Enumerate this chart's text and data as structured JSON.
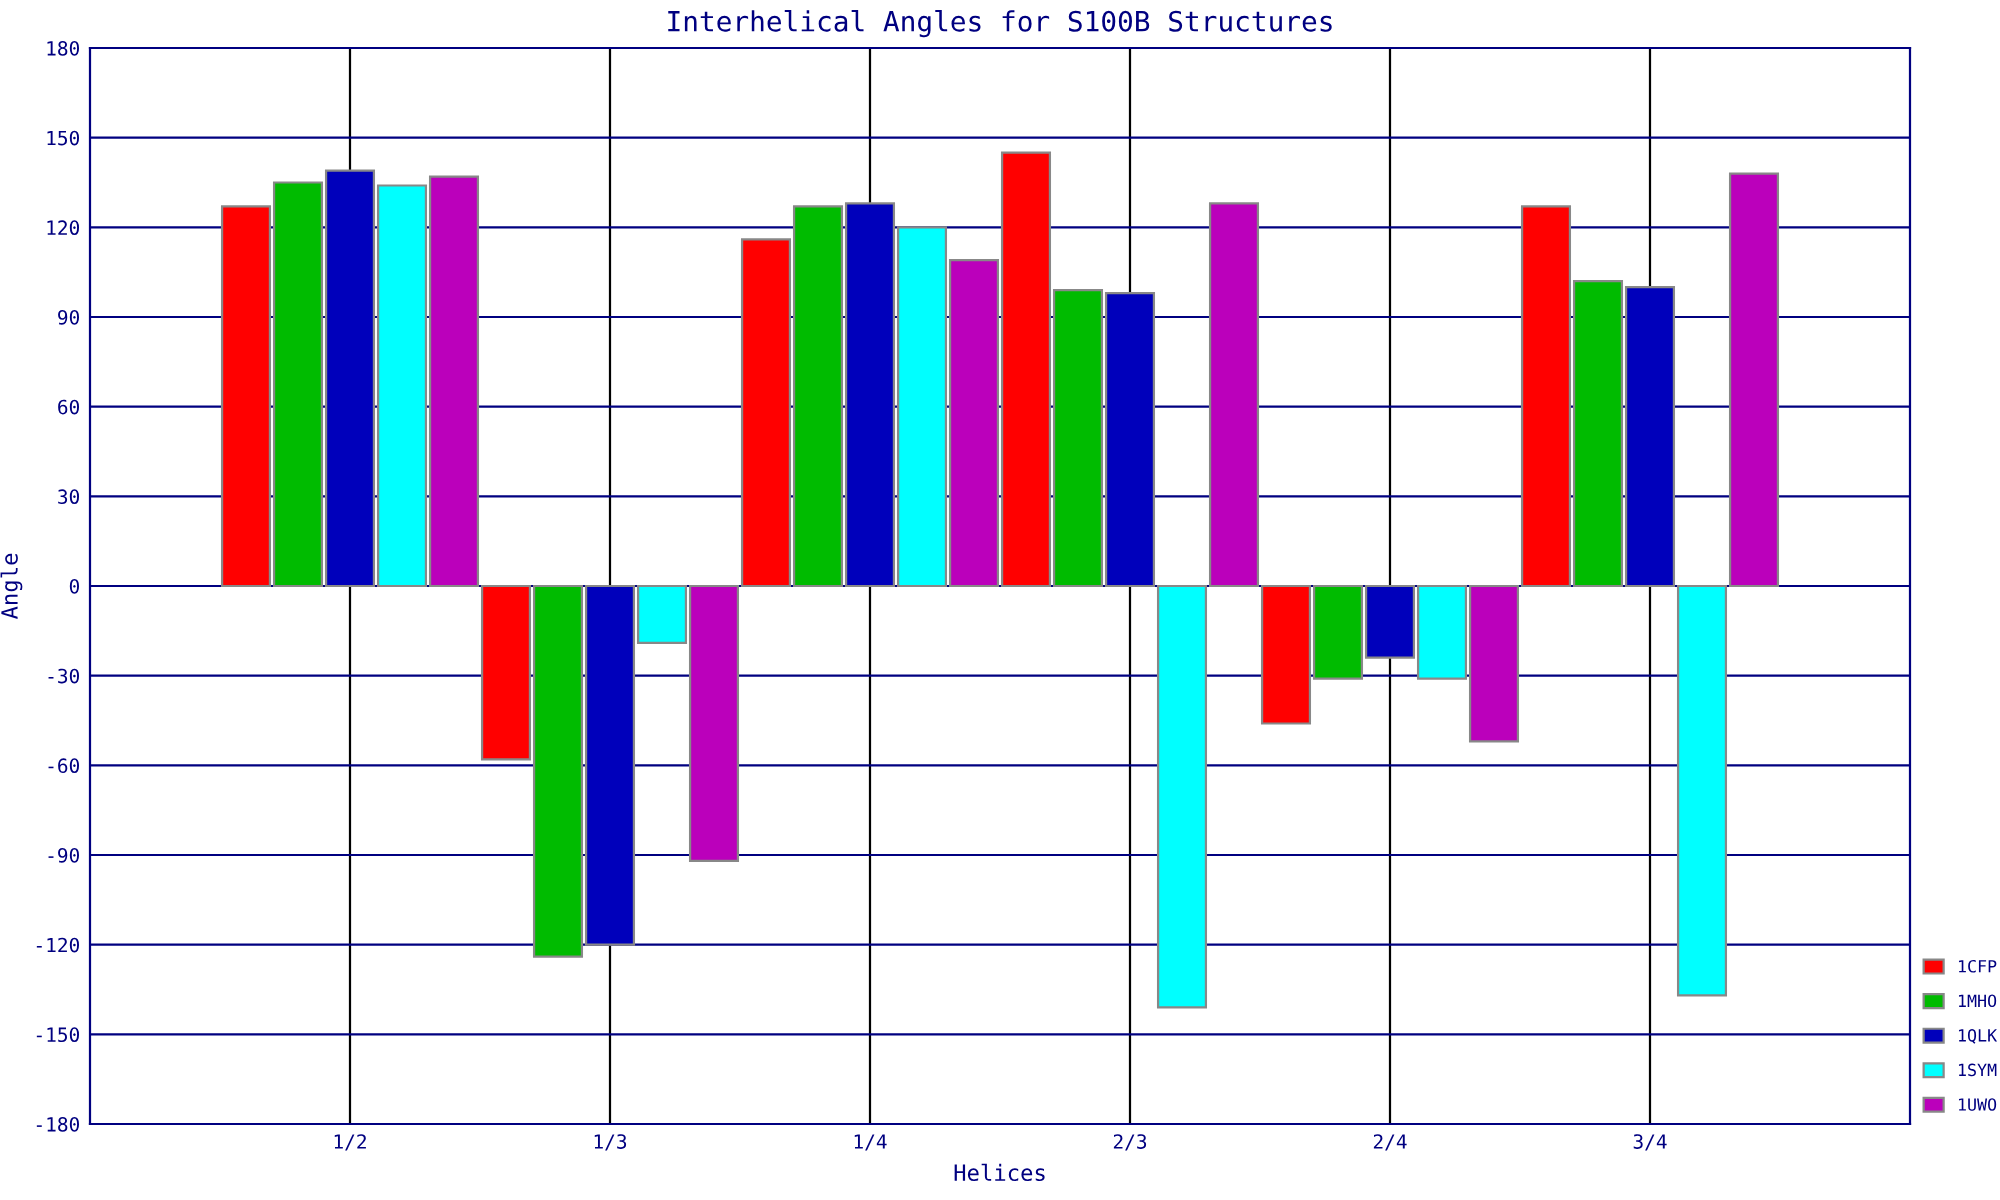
{
  "chart_data": {
    "type": "bar",
    "title": "Interhelical Angles for S100B Structures",
    "xlabel": "Helices",
    "ylabel": "Angle",
    "categories": [
      "1/2",
      "1/3",
      "1/4",
      "2/3",
      "2/4",
      "3/4"
    ],
    "series": [
      {
        "name": "1CFP",
        "color": "#ff0000",
        "values": [
          127,
          -58,
          116,
          145,
          -46,
          127
        ]
      },
      {
        "name": "1MHO",
        "color": "#00bb00",
        "values": [
          135,
          -124,
          127,
          99,
          -31,
          102
        ]
      },
      {
        "name": "1QLK",
        "color": "#0000bb",
        "values": [
          139,
          -120,
          128,
          98,
          -24,
          100
        ]
      },
      {
        "name": "1SYM",
        "color": "#00ffff",
        "values": [
          134,
          -19,
          120,
          -141,
          -31,
          -137
        ]
      },
      {
        "name": "1UWO",
        "color": "#bb00bb",
        "values": [
          137,
          -92,
          109,
          128,
          -52,
          138
        ]
      }
    ],
    "ylim": [
      -180,
      180
    ],
    "yticks": [
      -180,
      -150,
      -120,
      -90,
      -60,
      -30,
      0,
      30,
      60,
      90,
      120,
      150,
      180
    ],
    "grid": true,
    "legend": "bottom right"
  }
}
